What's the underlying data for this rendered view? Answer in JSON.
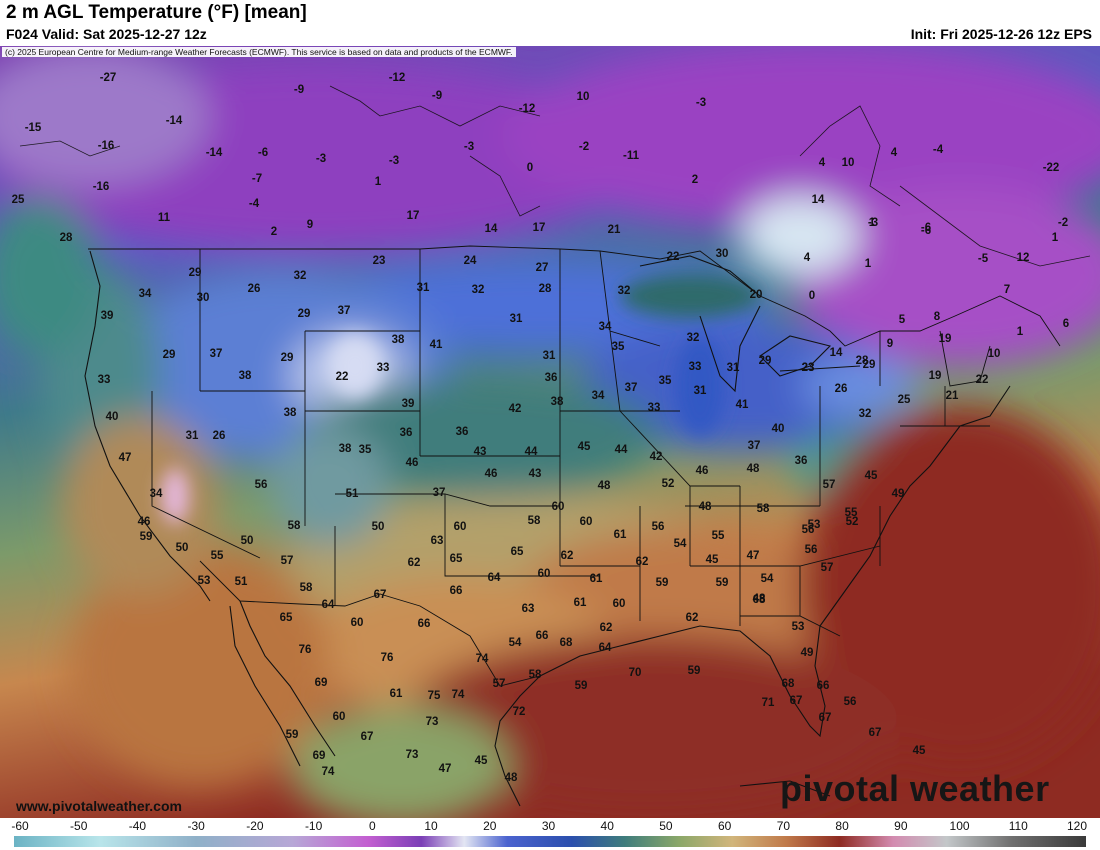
{
  "header": {
    "title": "2 m AGL Temperature (°F) [mean]",
    "valid": "F024 Valid: Sat 2025-12-27 12z",
    "init": "Init: Fri 2025-12-26 12z EPS"
  },
  "map": {
    "copyright": "(c) 2025 European Centre for Medium-range Weather Forecasts (ECMWF). This service is based on data and products of the ECMWF.",
    "site_url": "www.pivotalweather.com",
    "logo": "pivotal weather",
    "station_values": [
      "-27",
      "-12",
      "-9",
      "-9",
      "10",
      "-3",
      "-12",
      "-15",
      "-16",
      "-14",
      "-14",
      "-6",
      "-3",
      "-3",
      "-3",
      "-2",
      "-11",
      "-16",
      "-7",
      "0",
      "1",
      "2",
      "-4",
      "25",
      "11",
      "2",
      "9",
      "17",
      "14",
      "17",
      "21",
      "28",
      "23",
      "24",
      "27",
      "22",
      "29",
      "30",
      "29",
      "32",
      "26",
      "31",
      "32",
      "28",
      "31",
      "32",
      "20",
      "0",
      "34",
      "39",
      "30",
      "29",
      "37",
      "38",
      "41",
      "34",
      "35",
      "32",
      "37",
      "29",
      "33",
      "31",
      "36",
      "34",
      "37",
      "35",
      "33",
      "31",
      "31",
      "23",
      "14",
      "29",
      "26",
      "38",
      "22",
      "33",
      "39",
      "40",
      "38",
      "36",
      "35",
      "33",
      "41",
      "38",
      "40",
      "31",
      "26",
      "38",
      "42",
      "36",
      "43",
      "44",
      "45",
      "44",
      "42",
      "46",
      "48",
      "46",
      "37",
      "36",
      "37",
      "46",
      "43",
      "48",
      "52",
      "48",
      "57",
      "58",
      "56",
      "52",
      "45",
      "49",
      "47",
      "34",
      "46",
      "56",
      "58",
      "51",
      "50",
      "60",
      "58",
      "60",
      "60",
      "61",
      "56",
      "54",
      "55",
      "45",
      "47",
      "53",
      "55",
      "59",
      "50",
      "50",
      "55",
      "57",
      "63",
      "62",
      "65",
      "65",
      "62",
      "64",
      "60",
      "61",
      "62",
      "59",
      "59",
      "54",
      "56",
      "57",
      "53",
      "51",
      "58",
      "64",
      "67",
      "66",
      "63",
      "61",
      "62",
      "60",
      "62",
      "48",
      "53",
      "68",
      "65",
      "60",
      "66",
      "66",
      "54",
      "64",
      "68",
      "69",
      "76",
      "76",
      "74",
      "57",
      "58",
      "59",
      "70",
      "59",
      "49",
      "68",
      "66",
      "60",
      "61",
      "75",
      "67",
      "71",
      "67",
      "56",
      "59",
      "69",
      "67",
      "73",
      "74",
      "72",
      "73",
      "47",
      "45",
      "48",
      "67",
      "45",
      "74"
    ],
    "region_values": [
      "4",
      "-4",
      "-22",
      "4",
      "-6",
      "-3",
      "-2",
      "4",
      "10",
      "14",
      "1",
      "1",
      "-6",
      "1",
      "-5",
      "12",
      "7",
      "8",
      "5",
      "6",
      "9",
      "19",
      "1",
      "10",
      "19",
      "22",
      "21",
      "25",
      "29",
      "23",
      "28",
      "32"
    ]
  },
  "legend": {
    "ticks": [
      "-60",
      "-50",
      "-40",
      "-30",
      "-20",
      "-10",
      "0",
      "10",
      "20",
      "30",
      "40",
      "50",
      "60",
      "70",
      "80",
      "90",
      "100",
      "110",
      "120"
    ]
  }
}
